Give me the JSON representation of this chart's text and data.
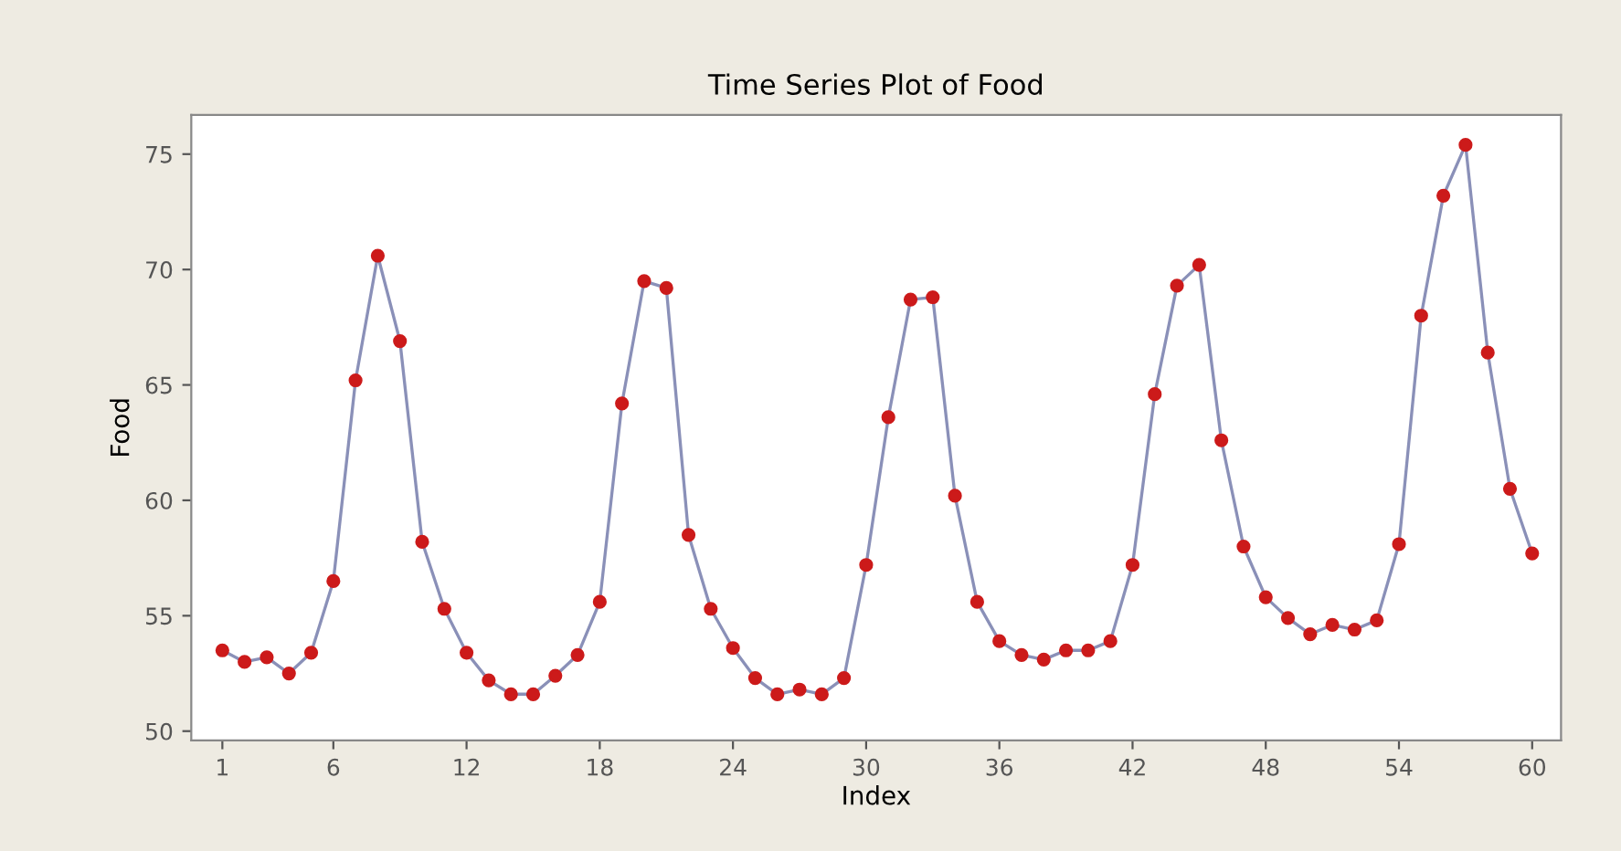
{
  "chart_data": {
    "type": "line",
    "title": "Time Series Plot of Food",
    "xlabel": "Index",
    "ylabel": "Food",
    "x": [
      1,
      2,
      3,
      4,
      5,
      6,
      7,
      8,
      9,
      10,
      11,
      12,
      13,
      14,
      15,
      16,
      17,
      18,
      19,
      20,
      21,
      22,
      23,
      24,
      25,
      26,
      27,
      28,
      29,
      30,
      31,
      32,
      33,
      34,
      35,
      36,
      37,
      38,
      39,
      40,
      41,
      42,
      43,
      44,
      45,
      46,
      47,
      48,
      49,
      50,
      51,
      52,
      53,
      54,
      55,
      56,
      57,
      58,
      59,
      60
    ],
    "series": [
      {
        "color": "#8a90b8",
        "values": [
          53.5,
          53.0,
          53.2,
          52.5,
          53.4,
          56.5,
          65.2,
          70.6,
          66.9,
          58.2,
          55.3,
          53.4,
          52.2,
          51.6,
          51.6,
          52.4,
          53.3,
          55.6,
          64.2,
          69.5,
          69.2,
          58.5,
          55.3,
          53.6,
          52.3,
          51.6,
          51.8,
          51.6,
          52.3,
          57.2,
          63.6,
          68.7,
          68.8,
          60.2,
          55.6,
          53.9,
          53.3,
          53.1,
          53.5,
          53.5,
          53.9,
          57.2,
          64.6,
          69.3,
          70.2,
          62.6,
          58.0,
          55.8,
          54.9,
          54.2,
          54.6,
          54.4,
          54.8,
          58.1,
          68.0,
          73.2,
          75.4,
          66.4,
          60.5,
          57.7
        ],
        "colors": [
          "#cc1a1a",
          "#cc1a1a",
          "#cc1a1a",
          "#cc1a1a",
          "#cc1a1a",
          "#cc1a1a",
          "#cc1a1a",
          "#cc1a1a",
          "#cc1a1a",
          "#cc1a1a",
          "#cc1a1a",
          "#cc1a1a",
          "#cc1a1a",
          "#cc1a1a",
          "#cc1a1a",
          "#cc1a1a",
          "#cc1a1a",
          "#cc1a1a",
          "#cc1a1a",
          "#cc1a1a",
          "#cc1a1a",
          "#cc1a1a",
          "#cc1a1a",
          "#cc1a1a",
          "#cc1a1a",
          "#cc1a1a",
          "#cc1a1a",
          "#cc1a1a",
          "#cc1a1a",
          "#cc1a1a",
          "#cc1a1a",
          "#cc1a1a",
          "#cc1a1a",
          "#cc1a1a",
          "#cc1a1a",
          "#cc1a1a",
          "#cc1a1a",
          "#cc1a1a",
          "#cc1a1a",
          "#cc1a1a",
          "#cc1a1a",
          "#cc1a1a",
          "#cc1a1a",
          "#cc1a1a",
          "#cc1a1a",
          "#cc1a1a",
          "#cc1a1a",
          "#cc1a1a",
          "#cc1a1a",
          "#cc1a1a",
          "#cc1a1a",
          "#cc1a1a",
          "#cc1a1a",
          "#cc1a1a",
          "#cc1a1a",
          "#cc1a1a",
          "#cc1a1a",
          "#cc1a1a",
          "#cc1a1a",
          "#cc1a1a"
        ]
      }
    ],
    "xlim": [
      -0.4,
      61.3
    ],
    "ylim": [
      49.6,
      76.7
    ],
    "xticks": [
      1,
      6,
      12,
      18,
      24,
      30,
      36,
      42,
      48,
      54,
      60
    ],
    "yticks": [
      50,
      55,
      60,
      65,
      70,
      75
    ],
    "marker": "circle",
    "line_style": "solid",
    "grid": false,
    "legend": false
  }
}
